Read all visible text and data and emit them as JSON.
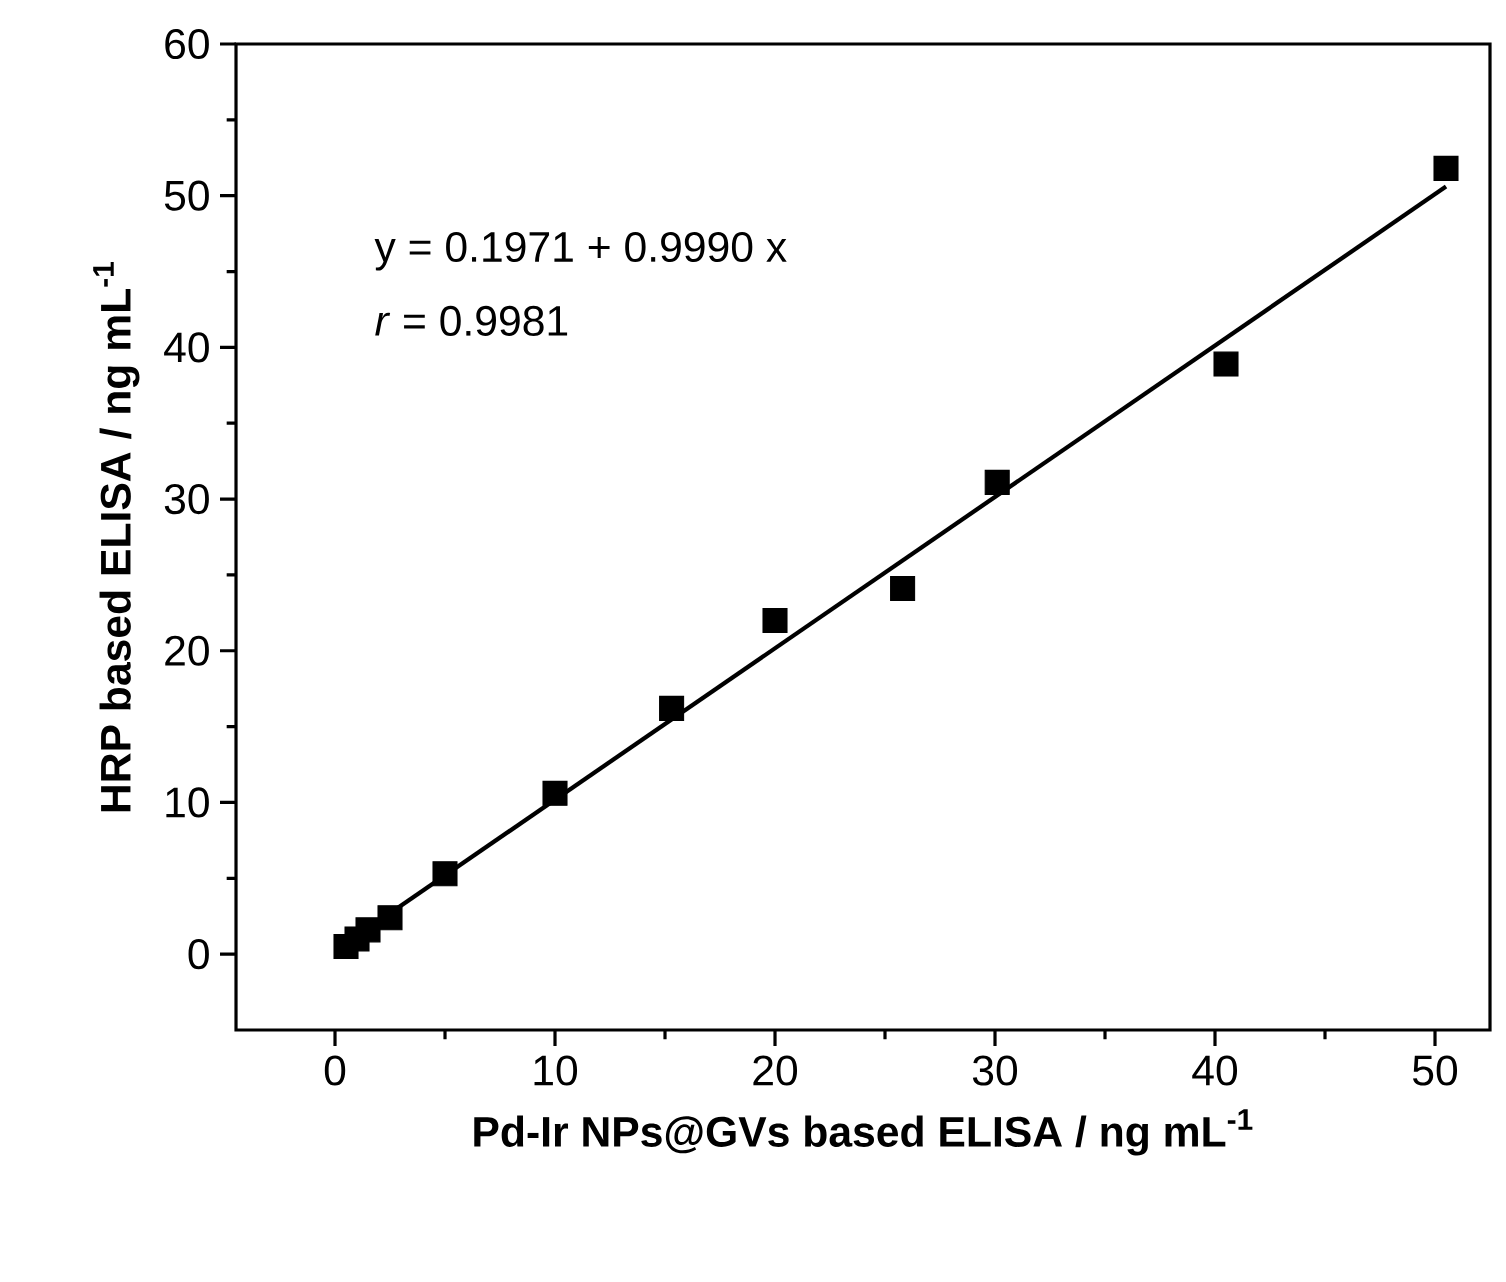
{
  "chart_data": {
    "type": "scatter",
    "xlabel": "Pd-Ir NPs@GVs based ELISA / ng mL$^{-1}$",
    "ylabel": "HRP based ELISA / ng mL$^{-1}$",
    "annotations": [
      "y = 0.1971 + 0.9990 x",
      "*r* = 0.9981"
    ],
    "xlim": [
      -4.5,
      52.5
    ],
    "ylim": [
      -5,
      60
    ],
    "xticks": [
      0,
      10,
      20,
      30,
      40,
      50
    ],
    "yticks": [
      0,
      10,
      20,
      30,
      40,
      50,
      60
    ],
    "series": [
      {
        "marker": "square",
        "color": "#000000",
        "x": [
          0.5,
          1,
          1.5,
          2.5,
          5,
          10,
          15.3,
          20,
          25.8,
          30.1,
          40.5,
          50.5
        ],
        "values": [
          0.5,
          1,
          1.6,
          2.4,
          5.3,
          10.6,
          16.2,
          22,
          24.1,
          31.1,
          38.9,
          51.8
        ]
      },
      {
        "type": "line",
        "marker": "none",
        "color": "#000000",
        "x": [
          0.5,
          50.5
        ],
        "values": [
          0.7,
          50.6
        ]
      }
    ]
  }
}
